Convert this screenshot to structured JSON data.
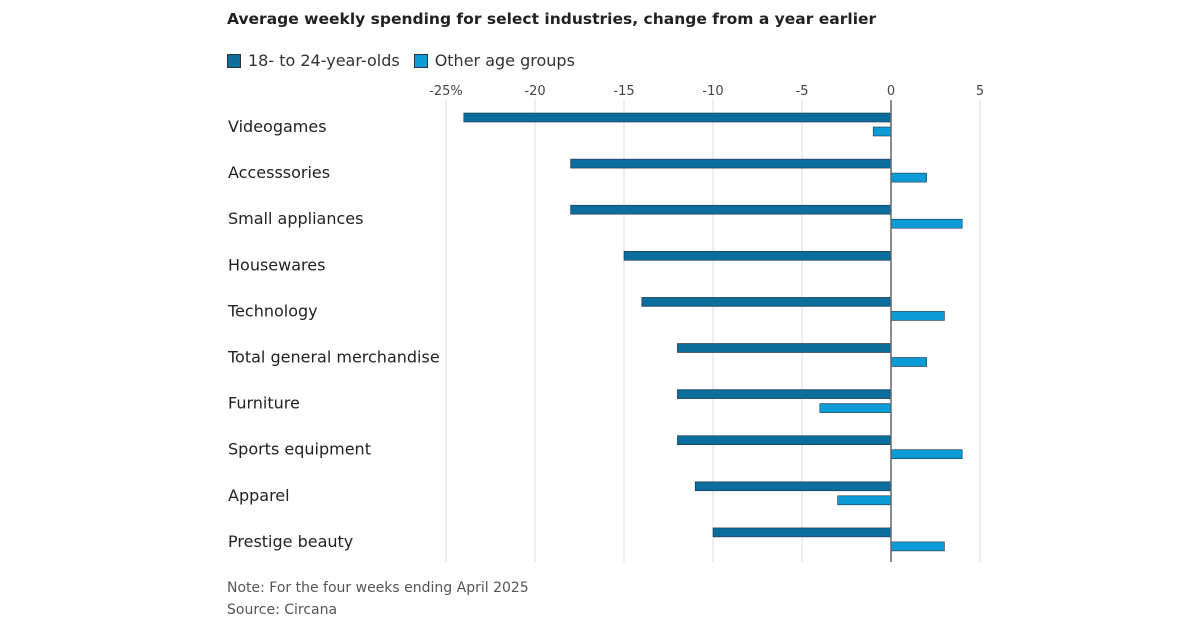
{
  "chart_data": {
    "type": "bar",
    "orientation": "horizontal",
    "title": "Average weekly spending for select industries, change from a year earlier",
    "categories": [
      "Videogames",
      "Accesssories",
      "Small appliances",
      "Housewares",
      "Technology",
      "Total general merchandise",
      "Furniture",
      "Sports equipment",
      "Apparel",
      "Prestige beauty"
    ],
    "series": [
      {
        "name": "18- to 24-year-olds",
        "color": "#0b6d9b",
        "values": [
          -24,
          -18,
          -18,
          -15,
          -14,
          -12,
          -12,
          -12,
          -11,
          -10
        ]
      },
      {
        "name": "Other age groups",
        "color": "#0b9bd7",
        "values": [
          -1,
          2,
          4,
          0,
          3,
          2,
          -4,
          4,
          -3,
          3
        ]
      }
    ],
    "xlim": [
      -25,
      5
    ],
    "xticks": [
      -25,
      -20,
      -15,
      -10,
      -5,
      0,
      5
    ],
    "xtick_labels": [
      "-25%",
      "-20",
      "-15",
      "-10",
      "-5",
      "0",
      "5"
    ],
    "grid": true,
    "legend": "top-left"
  },
  "notes": {
    "note": "Note: For the four weeks ending April 2025",
    "source": "Source: Circana"
  }
}
